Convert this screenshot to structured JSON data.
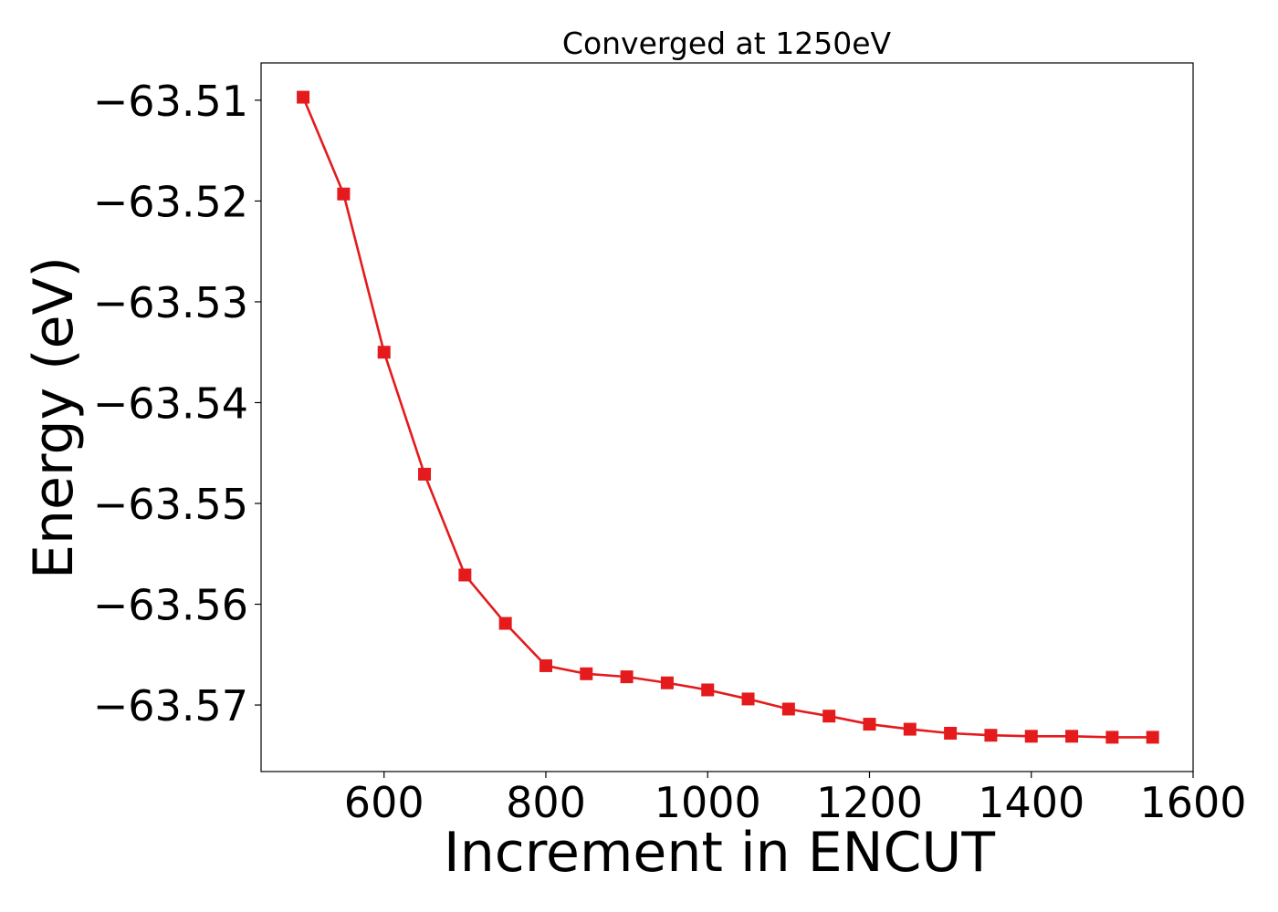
{
  "chart_data": {
    "type": "line",
    "title": "Converged at 1250eV",
    "xlabel": "Increment in ENCUT",
    "ylabel": "Energy (eV)",
    "xlim": [
      448,
      1600
    ],
    "ylim": [
      -63.5766,
      -63.5063
    ],
    "xticks": [
      600,
      800,
      1000,
      1200,
      1400,
      1600
    ],
    "yticks": [
      -63.51,
      -63.52,
      -63.53,
      -63.54,
      -63.55,
      -63.56,
      -63.57
    ],
    "xtick_labels": [
      "600",
      "800",
      "1000",
      "1200",
      "1400",
      "1600"
    ],
    "ytick_labels": [
      "−63.51",
      "−63.52",
      "−63.53",
      "−63.54",
      "−63.55",
      "−63.56",
      "−63.57"
    ],
    "grid": false,
    "color": "#e41a1c",
    "marker": "square",
    "series": [
      {
        "x": [
          500,
          550,
          600,
          650,
          700,
          750,
          800,
          850,
          900,
          950,
          1000,
          1050,
          1100,
          1150,
          1200,
          1250,
          1300,
          1350,
          1400,
          1450,
          1500,
          1550
        ],
        "values": [
          -63.5097,
          -63.5193,
          -63.535,
          -63.5471,
          -63.5571,
          -63.5619,
          -63.5661,
          -63.5669,
          -63.5672,
          -63.5678,
          -63.5685,
          -63.5694,
          -63.5704,
          -63.5711,
          -63.5719,
          -63.5724,
          -63.5728,
          -63.573,
          -63.5731,
          -63.5731,
          -63.5732,
          -63.5732
        ]
      }
    ]
  }
}
